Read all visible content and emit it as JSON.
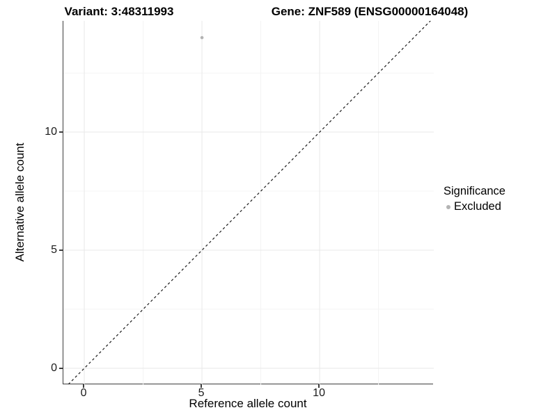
{
  "colors": {
    "grid_major": "#e8e8e8",
    "grid_minor": "#f4f4f4",
    "axis_line": "#3c3c3c",
    "identity_line": "#1a1a1a",
    "point": "#b3b3b3",
    "text": "#000000"
  },
  "chart_data": {
    "type": "scatter",
    "title_left": "Variant: 3:48311993",
    "title_right": "Gene: ZNF589 (ENSG00000164048)",
    "xlabel": "Reference allele count",
    "ylabel": "Alternative allele count",
    "x_ticks": [
      0,
      5,
      10
    ],
    "x_minor_ticks": [
      2.5,
      7.5,
      12.5
    ],
    "y_ticks": [
      0,
      5,
      10
    ],
    "y_minor_ticks": [
      2.5,
      7.5,
      12.5
    ],
    "xlim": [
      -0.89,
      14.85
    ],
    "ylim": [
      -0.68,
      14.71
    ],
    "grid": true,
    "identity_line": {
      "slope": 1,
      "intercept": 0,
      "style": "dashed"
    },
    "series": [
      {
        "name": "Excluded",
        "color": "#b3b3b3",
        "points": [
          {
            "x": 5,
            "y": 14
          }
        ]
      }
    ],
    "legend": {
      "title": "Significance",
      "position": "right",
      "items": [
        {
          "label": "Excluded",
          "color": "#b3b3b3"
        }
      ]
    }
  }
}
